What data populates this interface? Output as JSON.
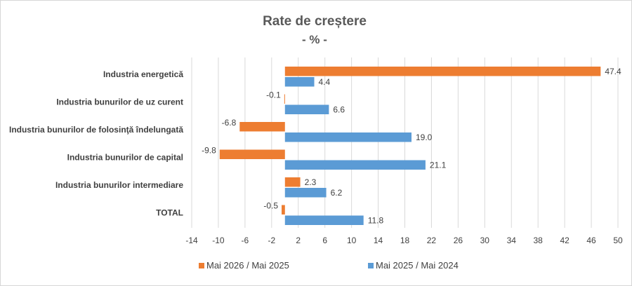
{
  "chart_data": {
    "type": "bar",
    "orientation": "horizontal",
    "title": "Rate de creștere",
    "subtitle": "- % -",
    "categories": [
      "Industria energetică",
      "Industria bunurilor de uz curent",
      "Industria bunurilor de folosinţă îndelungată",
      "Industria bunurilor de capital",
      "Industria bunurilor intermediare",
      "TOTAL"
    ],
    "series": [
      {
        "name": "Mai 2026 / Mai 2025",
        "color": "#ed7d31",
        "values": [
          47.4,
          -0.1,
          -6.8,
          -9.8,
          2.3,
          -0.5
        ]
      },
      {
        "name": "Mai 2025 / Mai 2024",
        "color": "#5b9bd5",
        "values": [
          4.4,
          6.6,
          19.0,
          21.1,
          6.2,
          11.8
        ]
      }
    ],
    "xlim": [
      -14,
      50
    ],
    "xticks": [
      -14,
      -10,
      -6,
      -2,
      2,
      6,
      10,
      14,
      18,
      22,
      26,
      30,
      34,
      38,
      42,
      46,
      50
    ],
    "grid": true,
    "legend_position": "bottom"
  }
}
